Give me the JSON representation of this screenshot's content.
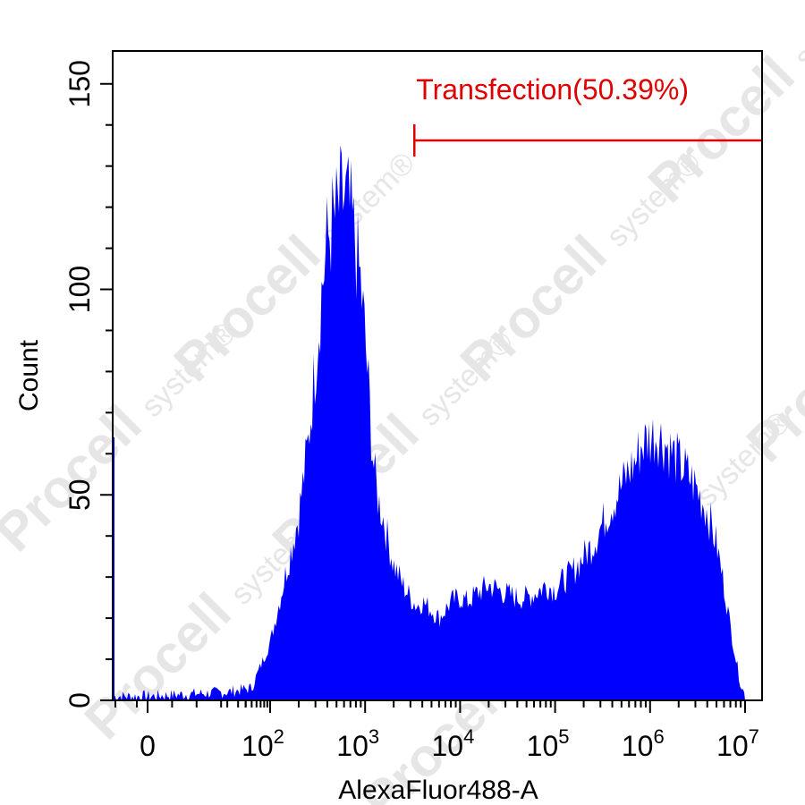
{
  "chart_data": {
    "type": "area",
    "xlabel": "AlexaFluor488-A",
    "ylabel": "Count",
    "x_scale": "biexponential",
    "x_tick_labels": [
      {
        "value": 0,
        "text": "0"
      },
      {
        "value": 100,
        "base": "10",
        "exp": "2"
      },
      {
        "value": 1000,
        "base": "10",
        "exp": "3"
      },
      {
        "value": 10000,
        "base": "10",
        "exp": "4"
      },
      {
        "value": 100000,
        "base": "10",
        "exp": "5"
      },
      {
        "value": 1000000,
        "base": "10",
        "exp": "6"
      },
      {
        "value": 10000000,
        "base": "10",
        "exp": "7"
      }
    ],
    "y_ticks": [
      0,
      50,
      100,
      150
    ],
    "ylim": [
      0,
      158
    ],
    "grid": false,
    "fill_color": "#0000ff",
    "gate": {
      "label": "Transfection(50.39%)",
      "start": 3300,
      "end": 12000000,
      "color": "#e00000"
    },
    "histogram": {
      "x": [
        0,
        20,
        50,
        100,
        150,
        200,
        250,
        300,
        350,
        400,
        450,
        500,
        550,
        600,
        650,
        700,
        750,
        800,
        900,
        1000,
        1100,
        1200,
        1300,
        1400,
        1500,
        1700,
        2000,
        2500,
        3000,
        3500,
        4000,
        5000,
        6000,
        7000,
        8000,
        10000,
        12000,
        15000,
        20000,
        25000,
        30000,
        40000,
        50000,
        60000,
        70000,
        80000,
        100000,
        120000,
        150000,
        200000,
        250000,
        300000,
        400000,
        500000,
        600000,
        700000,
        800000,
        1000000,
        1200000,
        1500000,
        2000000,
        2500000,
        3000000,
        4000000,
        5000000,
        6000000,
        7000000,
        8000000,
        9000000,
        10000000
      ],
      "count": [
        1,
        2,
        3,
        14,
        32,
        45,
        62,
        82,
        100,
        112,
        116,
        118,
        121,
        122,
        121,
        118,
        114,
        110,
        101,
        88,
        74,
        60,
        52,
        48,
        46,
        40,
        33,
        28,
        25,
        23,
        24,
        22,
        20,
        22,
        24,
        25,
        24,
        26,
        28,
        27,
        26,
        25,
        25,
        26,
        27,
        28,
        27,
        29,
        31,
        35,
        38,
        42,
        48,
        52,
        56,
        58,
        62,
        64,
        65,
        62,
        58,
        55,
        52,
        46,
        38,
        28,
        18,
        10,
        4,
        1
      ]
    }
  },
  "watermark": {
    "brand": "Procell",
    "tagline": "system®"
  }
}
